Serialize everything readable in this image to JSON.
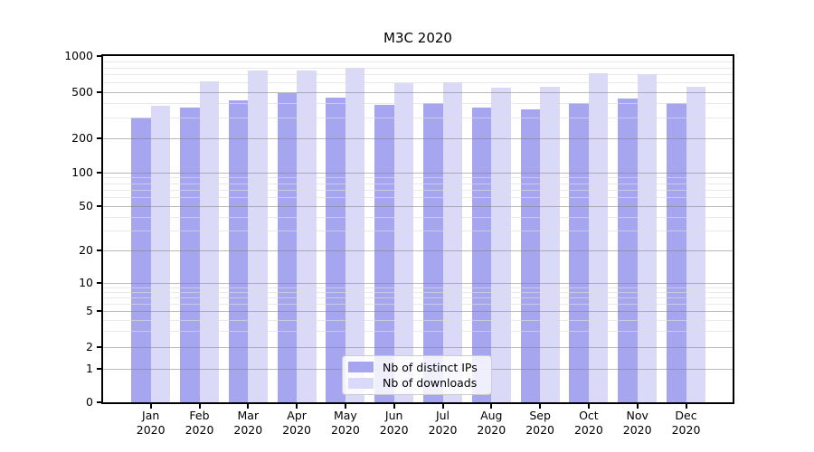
{
  "title": "M3C 2020",
  "chart_data": {
    "type": "bar",
    "title": "M3C 2020",
    "categories": [
      "Jan",
      "Feb",
      "Mar",
      "Apr",
      "May",
      "Jun",
      "Jul",
      "Aug",
      "Sep",
      "Oct",
      "Nov",
      "Dec"
    ],
    "category_year": "2020",
    "series": [
      {
        "name": "Nb of distinct IPs",
        "color": "#a5a5f0",
        "values": [
          300,
          370,
          425,
          485,
          450,
          390,
          400,
          365,
          355,
          400,
          440,
          400
        ]
      },
      {
        "name": "Nb of downloads",
        "color": "#dadaf8",
        "values": [
          380,
          610,
          750,
          750,
          800,
          590,
          600,
          540,
          555,
          715,
          700,
          550
        ]
      }
    ],
    "xlabel": "",
    "ylabel": "",
    "yscale": "symlog",
    "yticks": [
      0,
      1,
      2,
      5,
      10,
      20,
      50,
      100,
      200,
      500,
      1000
    ],
    "ylim": [
      0,
      1000
    ],
    "grid": "major and minor horizontal",
    "legend_position": "lower center"
  }
}
